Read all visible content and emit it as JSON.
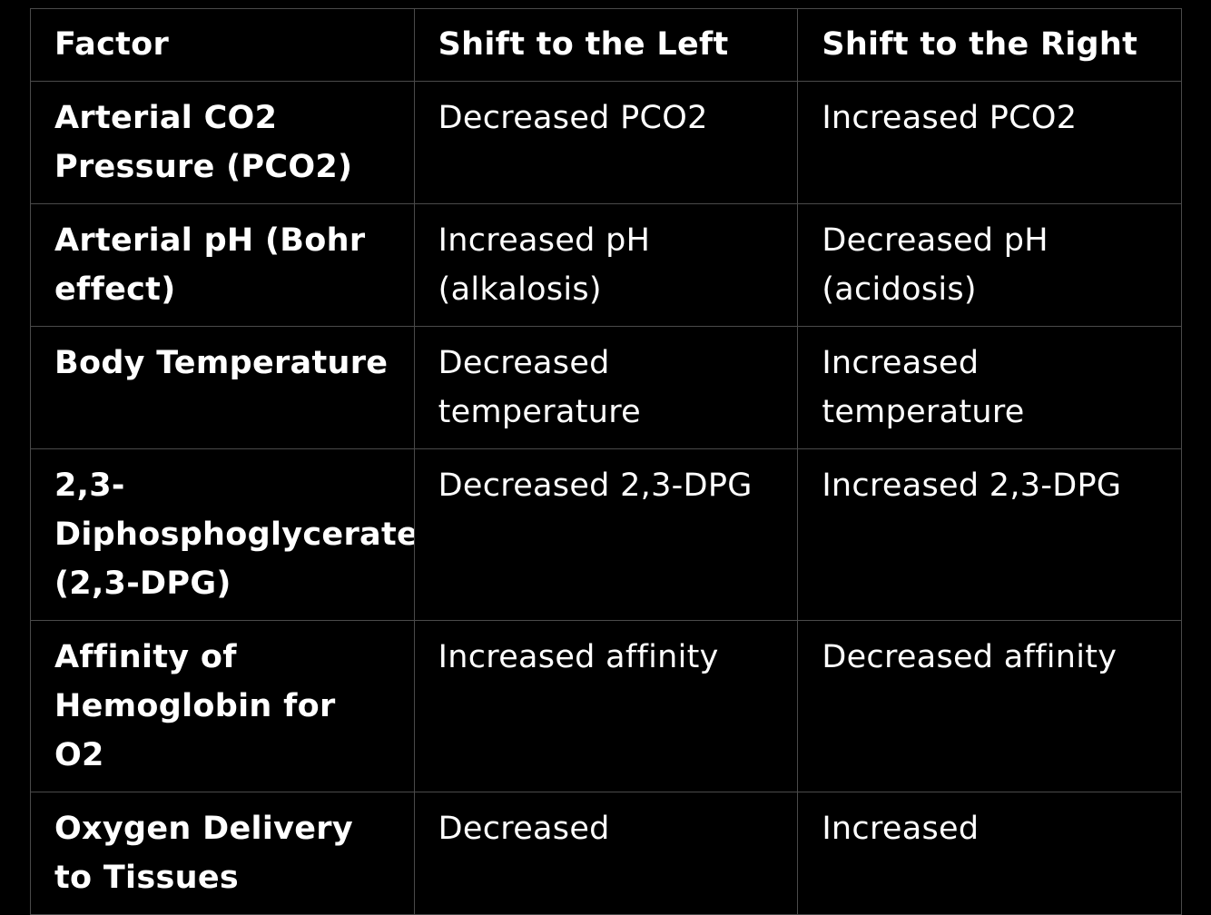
{
  "table": {
    "headers": [
      "Factor",
      "Shift to the Left",
      "Shift to the Right"
    ],
    "rows": [
      {
        "factor": "Arterial CO2 Pressure (PCO2)",
        "left": "Decreased PCO2",
        "right": "Increased PCO2"
      },
      {
        "factor": "Arterial pH (Bohr effect)",
        "left": "Increased pH (alkalosis)",
        "right": "Decreased pH (acidosis)"
      },
      {
        "factor": "Body Temperature",
        "left": "Decreased temperature",
        "right": "Increased temperature"
      },
      {
        "factor": "2,3-Diphosphoglycerate (2,3-DPG)",
        "left": "Decreased 2,3-DPG",
        "right": "Increased 2,3-DPG"
      },
      {
        "factor": "Affinity of Hemoglobin for O2",
        "left": "Increased affinity",
        "right": "Decreased affinity"
      },
      {
        "factor": "Oxygen Delivery to Tissues",
        "left": "Decreased",
        "right": "Increased"
      }
    ]
  },
  "colors": {
    "background": "#000000",
    "text": "#ffffff",
    "border": "#4a4a4a"
  }
}
